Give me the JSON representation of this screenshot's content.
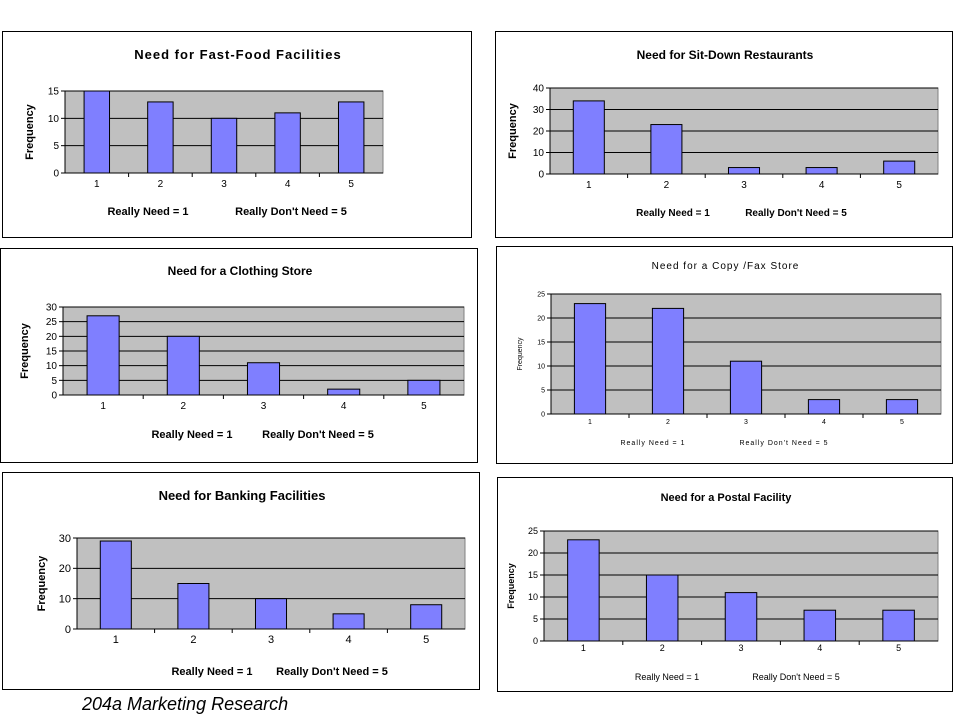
{
  "footer": {
    "text": "204a Marketing Research"
  },
  "colors": {
    "bar_fill": "#7f7fff",
    "bar_stroke": "#000000",
    "plot_bg": "#c0c0c0",
    "grid": "#000000"
  },
  "chart_data": [
    {
      "type": "bar",
      "title": "Need for Fast-Food Facilities",
      "categories": [
        "1",
        "2",
        "3",
        "4",
        "5"
      ],
      "values": [
        15,
        13,
        10,
        11,
        13
      ],
      "ylabel": "Frequency",
      "xlabel_left": "Really Need = 1",
      "xlabel_right": "Really Don't Need = 5",
      "ylim": [
        0,
        15
      ],
      "yticks": [
        0,
        5,
        10,
        15
      ],
      "grid": true
    },
    {
      "type": "bar",
      "title": "Need for Sit-Down Restaurants",
      "categories": [
        "1",
        "2",
        "3",
        "4",
        "5"
      ],
      "values": [
        34,
        23,
        3,
        3,
        6
      ],
      "ylabel": "Frequency",
      "xlabel_left": "Really Need = 1",
      "xlabel_right": "Really Don't Need = 5",
      "ylim": [
        0,
        40
      ],
      "yticks": [
        0,
        10,
        20,
        30,
        40
      ],
      "grid": true
    },
    {
      "type": "bar",
      "title": "Need for a Clothing Store",
      "categories": [
        "1",
        "2",
        "3",
        "4",
        "5"
      ],
      "values": [
        27,
        20,
        11,
        2,
        5
      ],
      "ylabel": "Frequency",
      "xlabel_left": "Really Need = 1",
      "xlabel_right": "Really Don't Need = 5",
      "ylim": [
        0,
        30
      ],
      "yticks": [
        0,
        5,
        10,
        15,
        20,
        25,
        30
      ],
      "grid": true
    },
    {
      "type": "bar",
      "title": "Need for a Copy /Fax Store",
      "categories": [
        "1",
        "2",
        "3",
        "4",
        "5"
      ],
      "values": [
        23,
        22,
        11,
        3,
        3
      ],
      "ylabel": "Frequency",
      "xlabel_left": "Really Need = 1",
      "xlabel_right": "Really Don't Need = 5",
      "ylim": [
        0,
        25
      ],
      "yticks": [
        0,
        5,
        10,
        15,
        20,
        25
      ],
      "grid": true
    },
    {
      "type": "bar",
      "title": "Need for Banking Facilities",
      "categories": [
        "1",
        "2",
        "3",
        "4",
        "5"
      ],
      "values": [
        29,
        15,
        10,
        5,
        8
      ],
      "ylabel": "Frequency",
      "xlabel_left": "Really Need = 1",
      "xlabel_right": "Really Don't Need = 5",
      "ylim": [
        0,
        30
      ],
      "yticks": [
        0,
        10,
        20,
        30
      ],
      "grid": true
    },
    {
      "type": "bar",
      "title": "Need for a Postal Facility",
      "categories": [
        "1",
        "2",
        "3",
        "4",
        "5"
      ],
      "values": [
        23,
        15,
        11,
        7,
        7
      ],
      "ylabel": "Frequency",
      "xlabel_left": "Really Need = 1",
      "xlabel_right": "Really Don't Need = 5",
      "ylim": [
        0,
        25
      ],
      "yticks": [
        0,
        5,
        10,
        15,
        20,
        25
      ],
      "grid": true
    }
  ]
}
